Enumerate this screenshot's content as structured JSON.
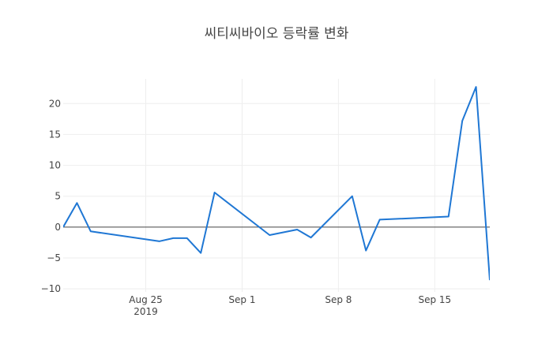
{
  "chart_data": {
    "type": "line",
    "title": "씨티씨바이오 등락률 변화",
    "xlabel": "",
    "ylabel": "",
    "x": [
      "2019-08-19",
      "2019-08-20",
      "2019-08-21",
      "2019-08-26",
      "2019-08-27",
      "2019-08-28",
      "2019-08-29",
      "2019-08-30",
      "2019-09-03",
      "2019-09-05",
      "2019-09-06",
      "2019-09-09",
      "2019-09-10",
      "2019-09-11",
      "2019-09-16",
      "2019-09-17",
      "2019-09-18",
      "2019-09-19"
    ],
    "series": [
      {
        "name": "",
        "color": "#1f77d4",
        "values": [
          0.0,
          3.9,
          -0.7,
          -2.3,
          -1.8,
          -1.8,
          -4.2,
          5.6,
          -1.3,
          -0.4,
          -1.7,
          5.0,
          -3.8,
          1.2,
          1.7,
          17.2,
          22.7,
          -8.6
        ]
      }
    ],
    "xlim": [
      "2019-08-19",
      "2019-09-19"
    ],
    "ylim": [
      -10.5,
      24
    ],
    "x_ticks": [
      {
        "date": "2019-08-25",
        "label": "Aug 25",
        "sublabel": "2019"
      },
      {
        "date": "2019-09-01",
        "label": "Sep 1",
        "sublabel": ""
      },
      {
        "date": "2019-09-08",
        "label": "Sep 8",
        "sublabel": ""
      },
      {
        "date": "2019-09-15",
        "label": "Sep 15",
        "sublabel": ""
      }
    ],
    "y_ticks": [
      -10,
      -5,
      0,
      5,
      10,
      15,
      20
    ],
    "grid": true,
    "legend": "none"
  }
}
